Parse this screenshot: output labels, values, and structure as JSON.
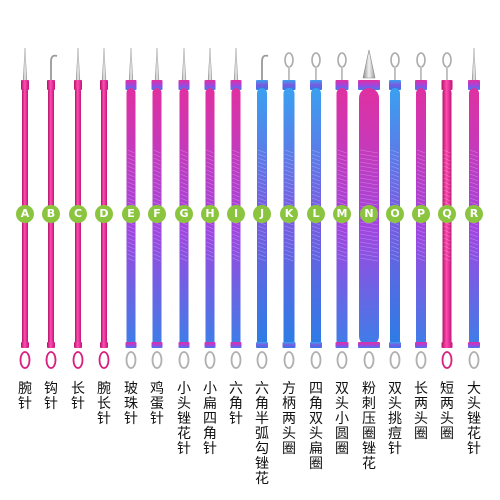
{
  "colors": {
    "badge": "#8bc53f",
    "pink": "#e8208a",
    "magenta": "#c43bd6",
    "blue": "#2a8ae6",
    "silver": "#c9c9c9"
  },
  "tools": [
    {
      "letter": "A",
      "name": "腕针",
      "tip": "loop-needle",
      "color": "pink"
    },
    {
      "letter": "B",
      "name": "钩针",
      "tip": "hook",
      "color": "pink"
    },
    {
      "letter": "C",
      "name": "长针",
      "tip": "needle",
      "color": "pink"
    },
    {
      "letter": "D",
      "name": "腕长针",
      "tip": "loop-needle",
      "color": "pink"
    },
    {
      "letter": "E",
      "name": "玻珠针",
      "tip": "needle",
      "color": "magenta"
    },
    {
      "letter": "F",
      "name": "鸡蛋针",
      "tip": "needle",
      "color": "magenta"
    },
    {
      "letter": "G",
      "name": "小头锉花针",
      "tip": "needle",
      "color": "magenta"
    },
    {
      "letter": "H",
      "name": "小扁四角针",
      "tip": "needle",
      "color": "magenta"
    },
    {
      "letter": "I",
      "name": "六角针",
      "tip": "needle",
      "color": "magenta"
    },
    {
      "letter": "J",
      "name": "六角半弧勾锉花",
      "tip": "hook",
      "color": "blue"
    },
    {
      "letter": "K",
      "name": "方柄两头圈",
      "tip": "loop",
      "color": "blue"
    },
    {
      "letter": "L",
      "name": "四角双头扁圈",
      "tip": "loop",
      "color": "blue"
    },
    {
      "letter": "M",
      "name": "双头小圆圈",
      "tip": "loop",
      "color": "magenta"
    },
    {
      "letter": "N",
      "name": "粉刺压圈锉花",
      "tip": "spoon",
      "color": "magenta"
    },
    {
      "letter": "O",
      "name": "双头挑痘针",
      "tip": "loop",
      "color": "blue"
    },
    {
      "letter": "P",
      "name": "长两头圈",
      "tip": "loop",
      "color": "magenta"
    },
    {
      "letter": "Q",
      "name": "短两头圈",
      "tip": "loop",
      "color": "pink"
    },
    {
      "letter": "R",
      "name": "大头锉花针",
      "tip": "needle",
      "color": "magenta"
    }
  ]
}
